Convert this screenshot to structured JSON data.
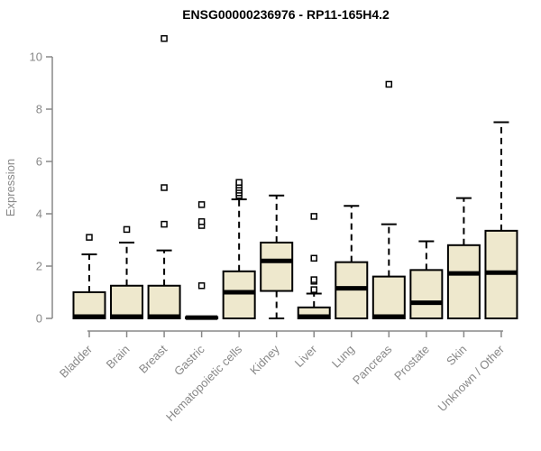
{
  "chart_data": {
    "type": "boxplot",
    "title": "ENSG00000236976 - RP11-165H4.2",
    "ylabel": "Expression",
    "xlabel": "",
    "ylim": [
      0,
      10
    ],
    "yticks": [
      0,
      2,
      4,
      6,
      8,
      10
    ],
    "grid": false,
    "legend": "none",
    "categories": [
      "Bladder",
      "Brain",
      "Breast",
      "Gastric",
      "Hematopoietic cells",
      "Kidney",
      "Liver",
      "Lung",
      "Pancreas",
      "Prostate",
      "Skin",
      "Unknown / Other"
    ],
    "boxes": [
      {
        "q1": 0,
        "median": 0.07,
        "q3": 1.0,
        "whisker_low": 0,
        "whisker_high": 2.45,
        "outliers": [
          3.1
        ]
      },
      {
        "q1": 0,
        "median": 0.07,
        "q3": 1.25,
        "whisker_low": 0,
        "whisker_high": 2.9,
        "outliers": [
          3.4
        ]
      },
      {
        "q1": 0,
        "median": 0.07,
        "q3": 1.25,
        "whisker_low": 0,
        "whisker_high": 2.6,
        "outliers": [
          3.6,
          5.0,
          10.7
        ]
      },
      {
        "q1": 0,
        "median": 0.03,
        "q3": 0.05,
        "whisker_low": 0,
        "whisker_high": 0.05,
        "outliers": [
          1.25,
          3.55,
          3.7,
          4.35
        ]
      },
      {
        "q1": 0,
        "median": 1.0,
        "q3": 1.8,
        "whisker_low": 0,
        "whisker_high": 4.55,
        "outliers": [
          4.7,
          4.8,
          4.9,
          5.0,
          5.1,
          5.2
        ]
      },
      {
        "q1": 1.05,
        "median": 2.2,
        "q3": 2.9,
        "whisker_low": 0,
        "whisker_high": 4.7,
        "outliers": []
      },
      {
        "q1": 0,
        "median": 0.07,
        "q3": 0.42,
        "whisker_low": 0,
        "whisker_high": 0.95,
        "outliers": [
          1.1,
          1.42,
          1.48,
          2.3,
          3.9
        ]
      },
      {
        "q1": 0,
        "median": 1.15,
        "q3": 2.15,
        "whisker_low": 0,
        "whisker_high": 4.3,
        "outliers": []
      },
      {
        "q1": 0,
        "median": 0.07,
        "q3": 1.6,
        "whisker_low": 0,
        "whisker_high": 3.6,
        "outliers": [
          8.95
        ]
      },
      {
        "q1": 0,
        "median": 0.6,
        "q3": 1.85,
        "whisker_low": 0,
        "whisker_high": 2.95,
        "outliers": []
      },
      {
        "q1": 0,
        "median": 1.72,
        "q3": 2.8,
        "whisker_low": 0,
        "whisker_high": 4.6,
        "outliers": []
      },
      {
        "q1": 0,
        "median": 1.75,
        "q3": 3.35,
        "whisker_low": 0,
        "whisker_high": 7.5,
        "outliers": []
      }
    ],
    "colors": {
      "box_fill": "#EEE8CD",
      "box_stroke": "#000000",
      "median_color": "#000000",
      "whisker_color": "#000000",
      "outlier_fill": "#ffffff",
      "axis_color": "#888888",
      "title_color": "#000000"
    }
  }
}
